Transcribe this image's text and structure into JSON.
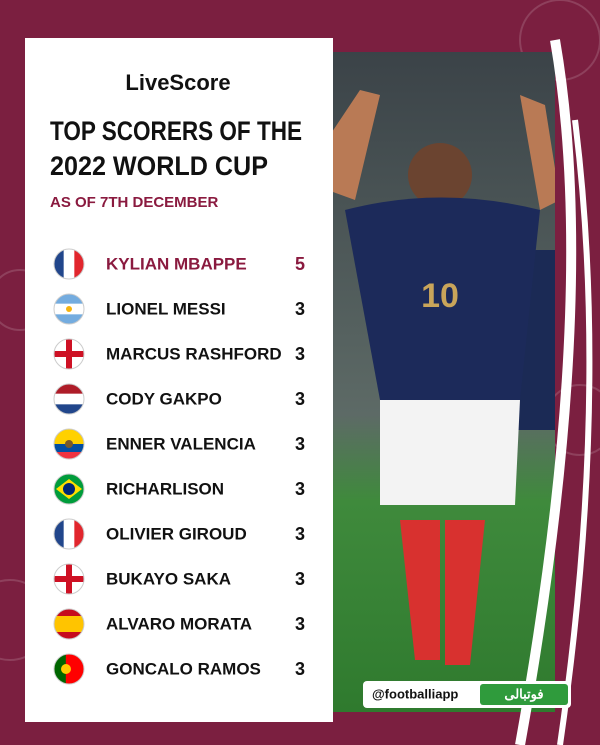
{
  "brand": "LiveScore",
  "title_lines": [
    "TOP SCORERS OF THE",
    "2022 WORLD CUP"
  ],
  "subtitle": "AS OF 7TH DECEMBER",
  "players": [
    {
      "name": "KYLIAN MBAPPE",
      "goals": 5
    },
    {
      "name": "LIONEL MESSI",
      "goals": 3
    },
    {
      "name": "MARCUS RASHFORD",
      "goals": 3
    },
    {
      "name": "CODY GAKPO",
      "goals": 3
    },
    {
      "name": "ENNER VALENCIA",
      "goals": 3
    },
    {
      "name": "RICHARLISON",
      "goals": 3
    },
    {
      "name": "OLIVIER GIROUD",
      "goals": 3
    },
    {
      "name": "BUKAYO SAKA",
      "goals": 3
    },
    {
      "name": "ALVARO MORATA",
      "goals": 3
    },
    {
      "name": "GONCALO RAMOS",
      "goals": 3
    }
  ],
  "watermark": {
    "handle": "@footballiapp",
    "app_name": "فوتبالی"
  }
}
